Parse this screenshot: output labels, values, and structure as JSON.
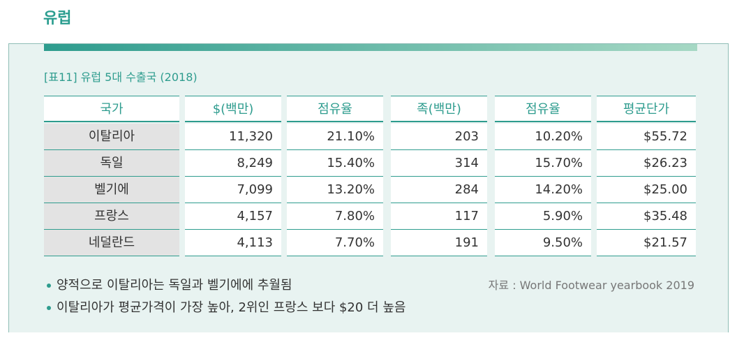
{
  "section_title": "유럽",
  "table": {
    "caption": "[표11] 유럽 5대 수출국 (2018)",
    "headers": [
      "국가",
      "$(백만)",
      "점유율",
      "족(백만)",
      "점유율",
      "평균단가"
    ],
    "rows": [
      {
        "country": "이탈리아",
        "usd": "11,320",
        "usd_share": "21.10%",
        "pairs": "203",
        "pairs_share": "10.20%",
        "avg_price": "$55.72"
      },
      {
        "country": "독일",
        "usd": "8,249",
        "usd_share": "15.40%",
        "pairs": "314",
        "pairs_share": "15.70%",
        "avg_price": "$26.23"
      },
      {
        "country": "벨기에",
        "usd": "7,099",
        "usd_share": "13.20%",
        "pairs": "284",
        "pairs_share": "14.20%",
        "avg_price": "$25.00"
      },
      {
        "country": "프랑스",
        "usd": "4,157",
        "usd_share": "7.80%",
        "pairs": "117",
        "pairs_share": "5.90%",
        "avg_price": "$35.48"
      },
      {
        "country": "네덜란드",
        "usd": "4,113",
        "usd_share": "7.70%",
        "pairs": "191",
        "pairs_share": "9.50%",
        "avg_price": "$21.57"
      }
    ]
  },
  "notes": [
    "양적으로 이탈리아는 독일과 벨기에에 추월됨",
    "이탈리아가 평균가격이 가장 높아, 2위인 프랑스 보다 $20 더 높음"
  ],
  "source": "자료 : World Footwear yearbook 2019",
  "colors": {
    "accent": "#2e9c8e",
    "panel_bg": "#e8f3f1",
    "name_cell_bg": "#e3e3e3"
  }
}
